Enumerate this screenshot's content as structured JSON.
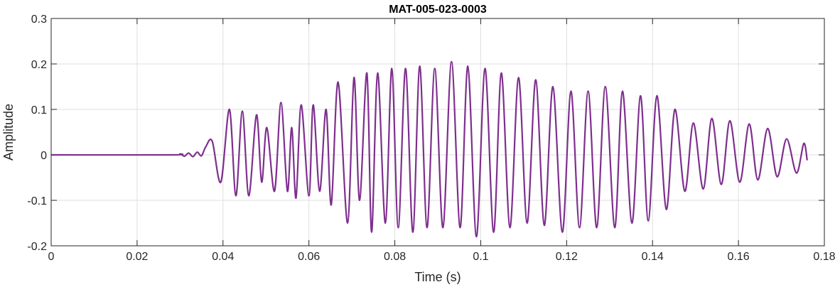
{
  "chart_data": {
    "type": "line",
    "title": "MAT-005-023-0003",
    "xlabel": "Time (s)",
    "ylabel": "Amplitude",
    "xlim": [
      0,
      0.18
    ],
    "ylim": [
      -0.2,
      0.3
    ],
    "xticks": [
      0,
      0.02,
      0.04,
      0.06,
      0.08,
      0.1,
      0.12,
      0.14,
      0.16,
      0.18
    ],
    "xtick_labels": [
      "0",
      "0.02",
      "0.04",
      "0.06",
      "0.08",
      "0.1",
      "0.12",
      "0.14",
      "0.16",
      "0.18"
    ],
    "yticks": [
      -0.2,
      -0.1,
      0,
      0.1,
      0.2,
      0.3
    ],
    "ytick_labels": [
      "-0.2",
      "-0.1",
      "0",
      "0.1",
      "0.2",
      "0.3"
    ],
    "grid": true,
    "line_color": "#7e2f8e",
    "series": [
      {
        "x": [
          0,
          0.028,
          0.03,
          0.031,
          0.032,
          0.033,
          0.034,
          0.035,
          0.036,
          0.0375,
          0.0395,
          0.0415,
          0.043,
          0.0445,
          0.046,
          0.0478,
          0.049,
          0.0502,
          0.052,
          0.0535,
          0.055,
          0.056,
          0.057,
          0.0582,
          0.06,
          0.061,
          0.0625,
          0.064,
          0.0652,
          0.0668,
          0.069,
          0.0705,
          0.0718,
          0.0735,
          0.0746,
          0.076,
          0.0778,
          0.0793,
          0.0808,
          0.0825,
          0.0842,
          0.0858,
          0.0875,
          0.0893,
          0.0912,
          0.0932,
          0.0952,
          0.097,
          0.099,
          0.101,
          0.103,
          0.1048,
          0.1068,
          0.1088,
          0.1108,
          0.1128,
          0.1148,
          0.1168,
          0.119,
          0.121,
          0.123,
          0.125,
          0.127,
          0.129,
          0.1312,
          0.133,
          0.1352,
          0.1372,
          0.139,
          0.141,
          0.1432,
          0.1452,
          0.1475,
          0.1495,
          0.1518,
          0.1538,
          0.156,
          0.158,
          0.1603,
          0.1625,
          0.1645,
          0.1668,
          0.169,
          0.1712,
          0.1735,
          0.1752,
          0.176
        ],
        "y": [
          0,
          0,
          0.002,
          -0.003,
          0.004,
          -0.004,
          0.006,
          -0.002,
          0.018,
          0.03,
          -0.06,
          0.1,
          -0.09,
          0.096,
          -0.09,
          0.088,
          -0.06,
          0.06,
          -0.08,
          0.115,
          -0.08,
          0.06,
          -0.095,
          0.11,
          -0.09,
          0.11,
          -0.08,
          0.1,
          -0.11,
          0.16,
          -0.15,
          0.17,
          -0.1,
          0.18,
          -0.17,
          0.18,
          -0.15,
          0.19,
          -0.16,
          0.19,
          -0.17,
          0.195,
          -0.16,
          0.19,
          -0.16,
          0.205,
          -0.16,
          0.195,
          -0.18,
          0.19,
          -0.17,
          0.18,
          -0.16,
          0.17,
          -0.15,
          0.165,
          -0.155,
          0.15,
          -0.17,
          0.14,
          -0.16,
          0.14,
          -0.16,
          0.15,
          -0.16,
          0.14,
          -0.15,
          0.13,
          -0.145,
          0.13,
          -0.12,
          0.1,
          -0.08,
          0.07,
          -0.075,
          0.08,
          -0.065,
          0.075,
          -0.06,
          0.068,
          -0.055,
          0.058,
          -0.048,
          0.035,
          -0.04,
          0.025,
          -0.012
        ]
      }
    ]
  }
}
